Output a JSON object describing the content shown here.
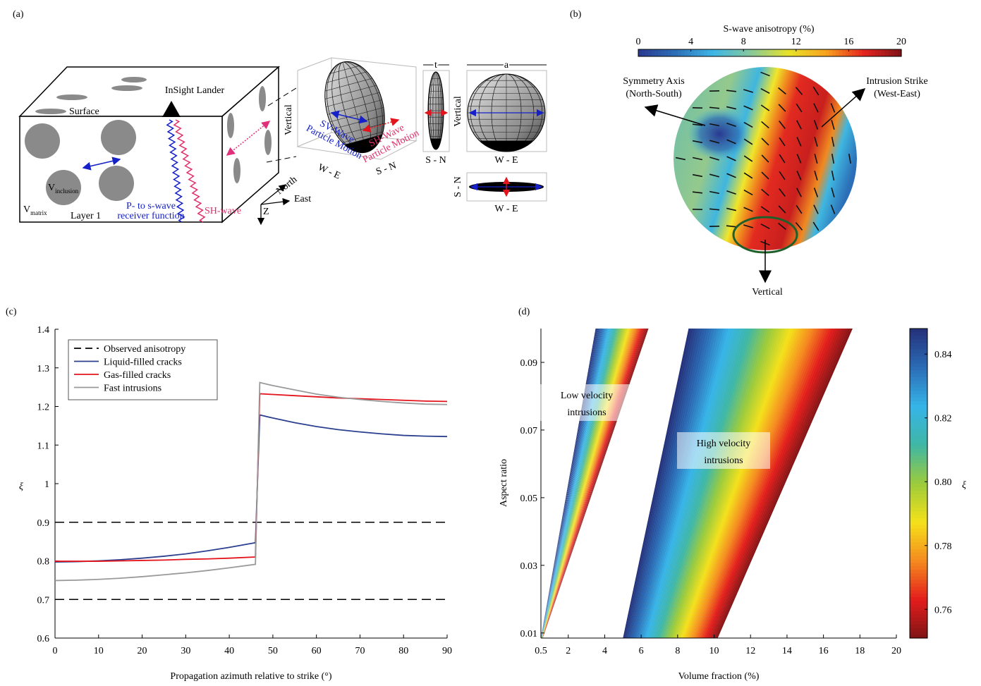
{
  "diagram_a": {
    "panel_label": "(a)",
    "surface": "Surface",
    "lander": "InSight Lander",
    "v_inclusion": {
      "symbol": "V",
      "subscript": "inclusion"
    },
    "v_matrix": {
      "symbol": "V",
      "subscript": "matrix"
    },
    "layer": "Layer 1",
    "receiver_function": [
      "P- to s-wave",
      "receiver function"
    ],
    "sh_wave": "SH-wave",
    "compass": {
      "north": "North",
      "east": "East",
      "down": "Z"
    },
    "ellipsoid": {
      "vertical": "Vertical",
      "x_axis": "W - E",
      "y_axis": "S - N",
      "sv_motion": [
        "SV-Wave",
        "Particle Motion"
      ],
      "sh_motion": [
        "SH-Wave",
        "Particle Motion"
      ]
    },
    "projections": {
      "thickness": "t",
      "axis_length": "a",
      "side_view_axis": "S - N",
      "front_view_vertical": "Vertical",
      "front_view_axis": "W - E",
      "top_view_vertical": "S - N",
      "top_view_axis": "W - E"
    }
  },
  "diagram_b": {
    "panel_label": "(b)",
    "colorbar": {
      "label": "S-wave anisotropy (%)",
      "lim": [
        0,
        20
      ],
      "ticks": [
        0,
        4,
        8,
        12,
        16,
        20
      ],
      "colormap": [
        "#2a3990",
        "#2d6fb7",
        "#3fb6e6",
        "#86c89a",
        "#e8e32a",
        "#f7a21e",
        "#e52420",
        "#7e1316"
      ]
    },
    "symmetry_axis": [
      "Symmetry Axis",
      "(North-South)"
    ],
    "intrusion_strike": [
      "Intrusion Strike",
      "(West-East)"
    ],
    "vertical": "Vertical"
  },
  "chart_data": [
    {
      "type": "line",
      "panel_label": "(c)",
      "xlabel": "Propagation azimuth relative to strike (°)",
      "ylabel": "ξ",
      "x": [
        0,
        5,
        10,
        15,
        20,
        25,
        30,
        35,
        40,
        46,
        47,
        50,
        55,
        60,
        65,
        70,
        75,
        80,
        85,
        90
      ],
      "reference_lines": {
        "name": "Observed anisotropy",
        "color": "#000000",
        "values": [
          0.9,
          0.7
        ]
      },
      "series": [
        {
          "name": "Liquid-filled cracks",
          "color": "#2b3f8f",
          "values": [
            0.797,
            0.798,
            0.8,
            0.803,
            0.807,
            0.812,
            0.818,
            0.826,
            0.835,
            0.847,
            1.178,
            1.17,
            1.158,
            1.148,
            1.14,
            1.134,
            1.129,
            1.125,
            1.123,
            1.122
          ]
        },
        {
          "name": "Gas-filled cracks",
          "color": "#e3141c",
          "values": [
            0.799,
            0.799,
            0.799,
            0.8,
            0.801,
            0.802,
            0.804,
            0.805,
            0.807,
            0.81,
            1.233,
            1.231,
            1.228,
            1.225,
            1.222,
            1.22,
            1.218,
            1.216,
            1.214,
            1.213
          ]
        },
        {
          "name": "Fast intrusions",
          "color": "#9a9a9a",
          "values": [
            0.749,
            0.75,
            0.752,
            0.755,
            0.759,
            0.764,
            0.769,
            0.775,
            0.782,
            0.791,
            1.262,
            1.254,
            1.243,
            1.232,
            1.224,
            1.218,
            1.213,
            1.209,
            1.206,
            1.205
          ]
        }
      ],
      "xlim": [
        0,
        90
      ],
      "xticks": [
        0,
        10,
        20,
        30,
        40,
        50,
        60,
        70,
        80,
        90
      ],
      "ylim": [
        0.6,
        1.4
      ],
      "yticks": [
        0.6,
        0.7,
        0.8,
        0.9,
        1,
        1.1,
        1.2,
        1.3,
        1.4
      ],
      "grid": false,
      "legend": "upper left"
    },
    {
      "type": "heatmap",
      "panel_label": "(d)",
      "xlabel": "Volume fraction (%)",
      "ylabel": "Aspect ratio",
      "colorbar_label": "ξ",
      "xlim": [
        0.5,
        20
      ],
      "xticks": [
        0.5,
        2,
        4,
        6,
        8,
        10,
        12,
        14,
        16,
        18,
        20
      ],
      "ylim": [
        0.0085,
        0.1
      ],
      "yticks": [
        0.01,
        0.03,
        0.05,
        0.07,
        0.09
      ],
      "clim": [
        0.751,
        0.848
      ],
      "cticks": [
        0.76,
        0.78,
        {
          "value": 0.8,
          "label": "0.80"
        },
        0.82,
        0.84
      ],
      "colormap": [
        "#7f1416",
        "#e31d1c",
        "#f58a1f",
        "#f5e11a",
        "#9ccb3b",
        "#3fb7a5",
        "#36b4e8",
        "#2b6cb6",
        "#25307a"
      ],
      "regions": [
        {
          "label": [
            "Low velocity",
            "intrusions"
          ],
          "x": [
            0.5,
            3.5,
            6.4,
            0.6
          ],
          "y": [
            0.0085,
            0.1,
            0.1,
            0.0085
          ],
          "values": [
            0.848,
            0.848,
            0.751,
            0.751
          ]
        },
        {
          "label": [
            "High velocity",
            "intrusions"
          ],
          "x": [
            5.0,
            8.6,
            17.6,
            10.2
          ],
          "y": [
            0.0085,
            0.1,
            0.1,
            0.0085
          ],
          "values": [
            0.848,
            0.848,
            0.751,
            0.751
          ]
        }
      ]
    }
  ]
}
